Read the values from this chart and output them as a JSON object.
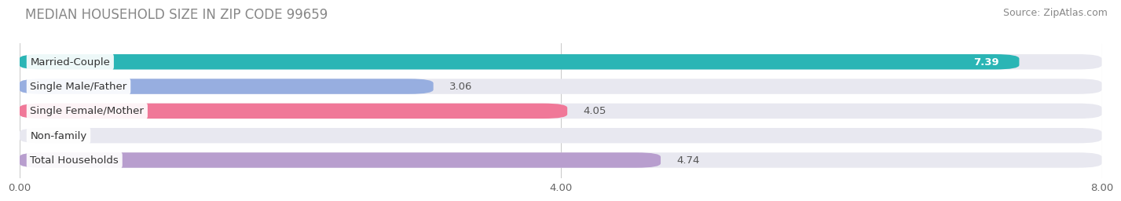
{
  "title": "MEDIAN HOUSEHOLD SIZE IN ZIP CODE 99659",
  "source": "Source: ZipAtlas.com",
  "categories": [
    "Married-Couple",
    "Single Male/Father",
    "Single Female/Mother",
    "Non-family",
    "Total Households"
  ],
  "values": [
    7.39,
    3.06,
    4.05,
    0.0,
    4.74
  ],
  "bar_colors": [
    "#2ab5b5",
    "#97aee0",
    "#f07898",
    "#f5c98a",
    "#b89ece"
  ],
  "xlim": [
    0,
    8.0
  ],
  "xticks": [
    0.0,
    4.0,
    8.0
  ],
  "xtick_labels": [
    "0.00",
    "4.00",
    "8.00"
  ],
  "title_fontsize": 12,
  "source_fontsize": 9,
  "label_fontsize": 9.5,
  "value_fontsize": 9.5,
  "background_color": "#ffffff",
  "bar_height": 0.62,
  "bg_bar_color": "#e8e8f0",
  "label_bg_color": "#ffffff"
}
